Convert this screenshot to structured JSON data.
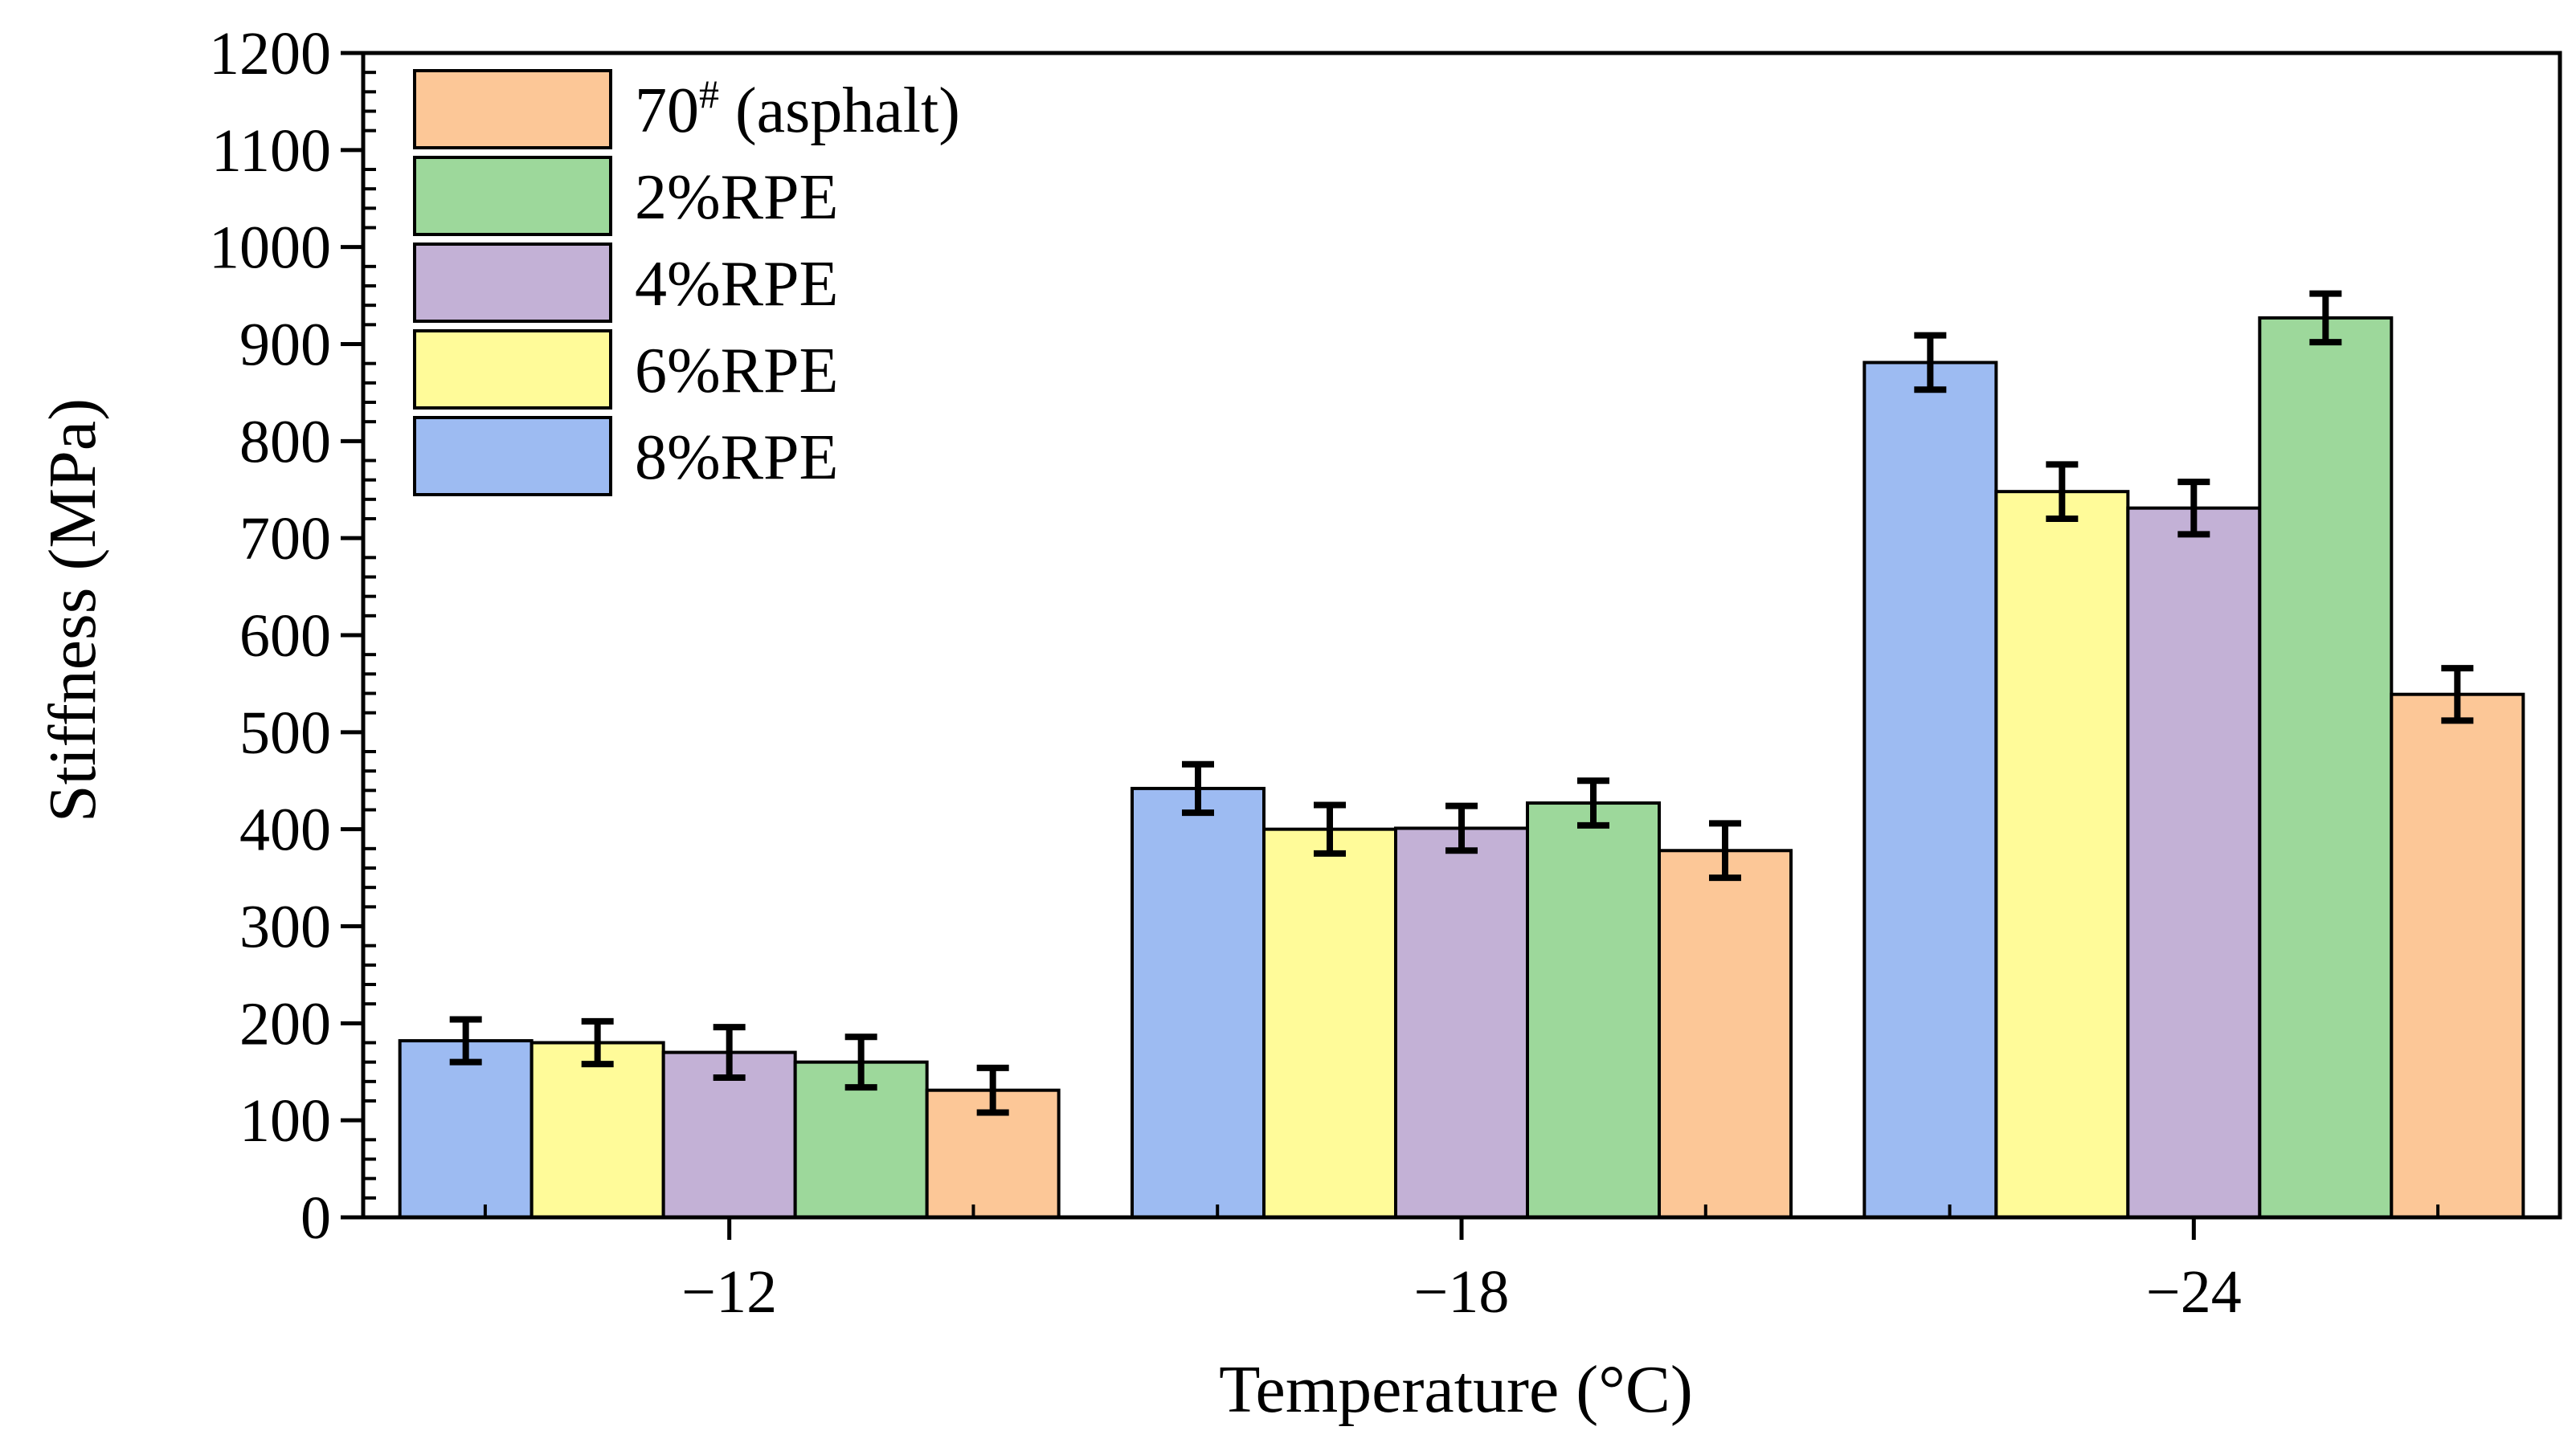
{
  "chart_data": {
    "type": "bar",
    "title": "",
    "xlabel": "Temperature (°C)",
    "ylabel": "Stiffness (MPa)",
    "ylim": [
      0,
      1200
    ],
    "yticks": [
      0,
      100,
      200,
      300,
      400,
      500,
      600,
      700,
      800,
      900,
      1000,
      1100,
      1200
    ],
    "categories": [
      "−12",
      "−18",
      "−24"
    ],
    "series": [
      {
        "name": "8%RPE",
        "color": "#9dbbf2",
        "values": [
          182,
          442,
          881
        ],
        "errors": [
          22,
          25,
          28
        ]
      },
      {
        "name": "6%RPE",
        "color": "#fffb99",
        "values": [
          180,
          400,
          748
        ],
        "errors": [
          22,
          25,
          28
        ]
      },
      {
        "name": "4%RPE",
        "color": "#c3b1d6",
        "values": [
          170,
          401,
          731
        ],
        "errors": [
          26,
          23,
          27
        ]
      },
      {
        "name": "2%RPE",
        "color": "#9dd89b",
        "values": [
          160,
          427,
          927
        ],
        "errors": [
          26,
          23,
          25
        ]
      },
      {
        "name": "70# (asphalt)",
        "color": "#fcc797",
        "values": [
          131,
          378,
          539
        ],
        "errors": [
          23,
          28,
          27
        ]
      }
    ],
    "legend": {
      "placement": "top-left",
      "entries": [
        {
          "label_main": "70",
          "label_sup": "#",
          "label_rest": " (asphalt)",
          "series": "70# (asphalt)"
        },
        {
          "label_main": "2%RPE",
          "series": "2%RPE"
        },
        {
          "label_main": "4%RPE",
          "series": "4%RPE"
        },
        {
          "label_main": "6%RPE",
          "series": "6%RPE"
        },
        {
          "label_main": "8%RPE",
          "series": "8%RPE"
        }
      ]
    },
    "grid": false
  }
}
